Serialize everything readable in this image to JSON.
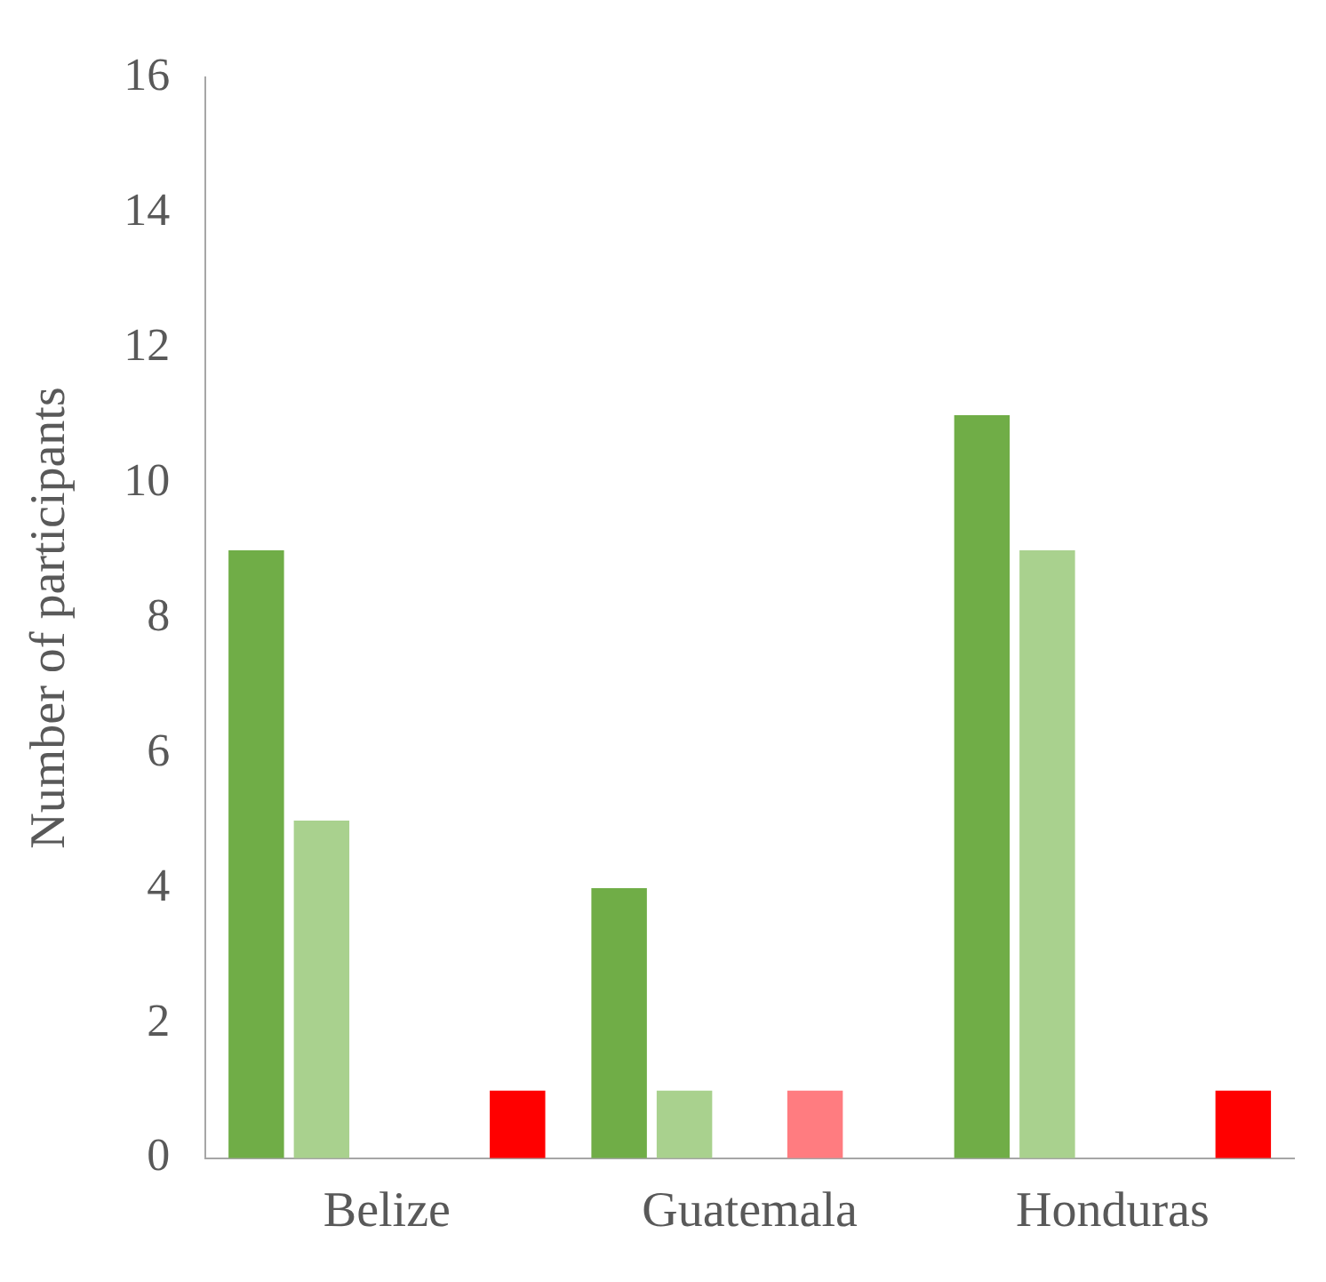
{
  "chart_data": {
    "type": "bar",
    "ylabel": "Number of participants",
    "categories": [
      "Belize",
      "Guatemala",
      "Honduras"
    ],
    "series": [
      {
        "color": "#70ad47",
        "values": [
          9,
          4,
          11
        ]
      },
      {
        "color": "#a9d18e",
        "values": [
          5,
          1,
          9
        ]
      },
      {
        "color": "#5b9bd5",
        "values": [
          0,
          0,
          0
        ]
      },
      {
        "color": "#ff7c80",
        "values": [
          0,
          1,
          0
        ]
      },
      {
        "color": "#ff0000",
        "values": [
          1,
          0,
          1
        ]
      }
    ],
    "ylim": [
      0,
      16
    ],
    "yticks": [
      0,
      2,
      4,
      6,
      8,
      10,
      12,
      14,
      16
    ],
    "grid": false,
    "legend": false
  }
}
